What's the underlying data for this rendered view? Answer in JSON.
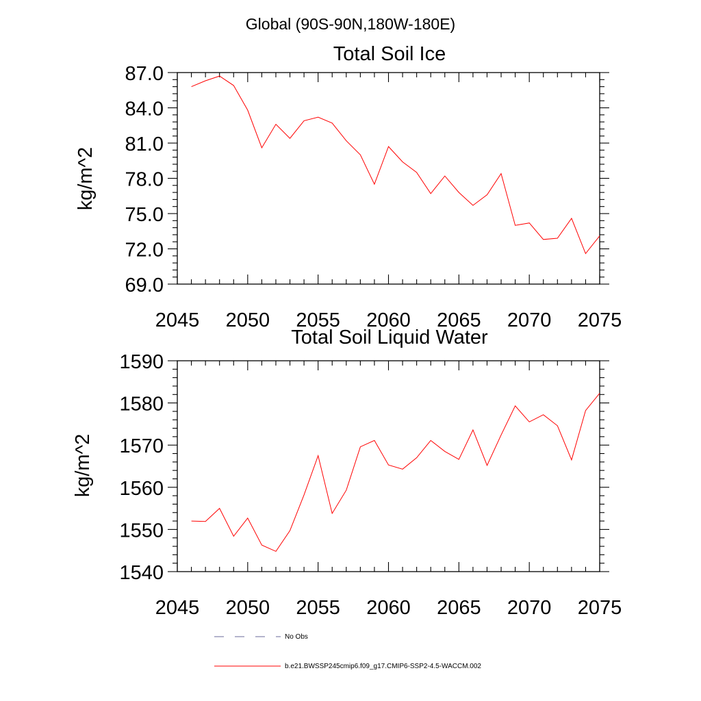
{
  "header": {
    "region_title": "Global (90S-90N,180W-180E)"
  },
  "legend": {
    "obs_label": "No Obs",
    "model_label": "b.e21.BWSSP245cmip6.f09_g17.CMIP6-SSP2-4.5-WACCM.002",
    "obs_color": "#6a6a9a",
    "model_color": "#ff0000",
    "position": "bottom-left"
  },
  "chart_data": [
    {
      "type": "line",
      "title": "Total Soil Ice",
      "xlabel": "",
      "ylabel": "kg/m^2",
      "xlim": [
        2045,
        2075
      ],
      "ylim": [
        69,
        87
      ],
      "xticks": [
        "2045",
        "2050",
        "2055",
        "2060",
        "2065",
        "2070",
        "2075"
      ],
      "yticks": [
        "69.0",
        "72.0",
        "75.0",
        "78.0",
        "81.0",
        "84.0",
        "87.0"
      ],
      "grid": false,
      "series": [
        {
          "name": "b.e21.BWSSP245cmip6.f09_g17.CMIP6-SSP2-4.5-WACCM.002",
          "color": "#ff0000",
          "x": [
            2046,
            2047,
            2048,
            2049,
            2050,
            2051,
            2052,
            2053,
            2054,
            2055,
            2056,
            2057,
            2058,
            2059,
            2060,
            2061,
            2062,
            2063,
            2064,
            2065,
            2066,
            2067,
            2068,
            2069,
            2070,
            2071,
            2072,
            2073,
            2074,
            2075
          ],
          "y": [
            85.8,
            86.3,
            86.7,
            85.9,
            83.8,
            80.6,
            82.6,
            81.4,
            82.9,
            83.2,
            82.7,
            81.2,
            80.0,
            77.5,
            80.7,
            79.4,
            78.5,
            76.7,
            78.2,
            76.8,
            75.7,
            76.6,
            78.4,
            74.0,
            74.2,
            72.8,
            72.9,
            74.6,
            71.6,
            73.1
          ]
        }
      ]
    },
    {
      "type": "line",
      "title": "Total Soil Liquid Water",
      "xlabel": "",
      "ylabel": "kg/m^2",
      "xlim": [
        2045,
        2075
      ],
      "ylim": [
        1540,
        1590
      ],
      "xticks": [
        "2045",
        "2050",
        "2055",
        "2060",
        "2065",
        "2070",
        "2075"
      ],
      "yticks": [
        "1540",
        "1550",
        "1560",
        "1570",
        "1580",
        "1590"
      ],
      "grid": false,
      "series": [
        {
          "name": "b.e21.BWSSP245cmip6.f09_g17.CMIP6-SSP2-4.5-WACCM.002",
          "color": "#ff0000",
          "x": [
            2046,
            2047,
            2048,
            2049,
            2050,
            2051,
            2052,
            2053,
            2054,
            2055,
            2056,
            2057,
            2058,
            2059,
            2060,
            2061,
            2062,
            2063,
            2064,
            2065,
            2066,
            2067,
            2068,
            2069,
            2070,
            2071,
            2072,
            2073,
            2074,
            2075
          ],
          "y": [
            1552.0,
            1551.9,
            1555.0,
            1548.4,
            1552.7,
            1546.3,
            1544.8,
            1549.7,
            1558.2,
            1567.5,
            1553.8,
            1559.3,
            1569.6,
            1571.1,
            1565.3,
            1564.3,
            1567.0,
            1571.1,
            1568.5,
            1566.6,
            1573.6,
            1565.2,
            1572.4,
            1579.3,
            1575.5,
            1577.2,
            1574.6,
            1566.5,
            1578.2,
            1582.3
          ]
        }
      ]
    }
  ]
}
